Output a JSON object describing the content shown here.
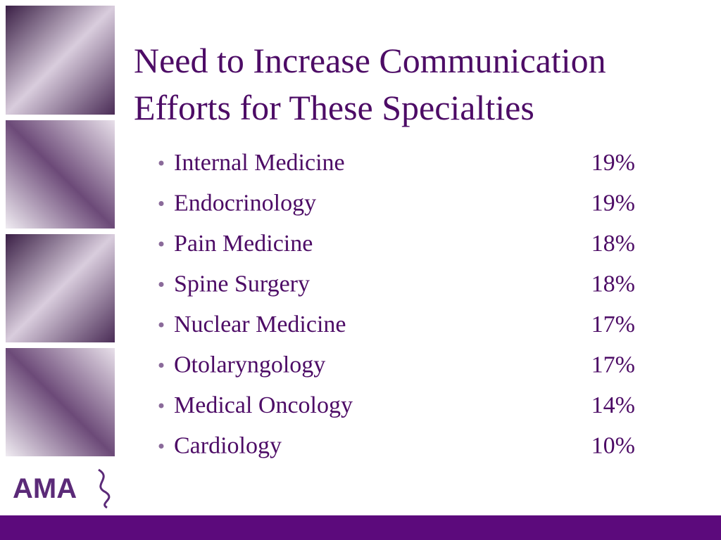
{
  "slide": {
    "title_lines": [
      "Need to Increase Communication",
      "Efforts for These Specialties"
    ],
    "items": [
      {
        "name": "Internal Medicine",
        "value": "19%"
      },
      {
        "name": "Endocrinology",
        "value": "19%"
      },
      {
        "name": "Pain Medicine",
        "value": "18%"
      },
      {
        "name": "Spine Surgery",
        "value": "18%"
      },
      {
        "name": "Nuclear Medicine",
        "value": "17%"
      },
      {
        "name": "Otolaryngology",
        "value": "17%"
      },
      {
        "name": "Medical Oncology",
        "value": "14%"
      },
      {
        "name": "Cardiology",
        "value": "10%"
      }
    ],
    "logo": "AMA"
  }
}
